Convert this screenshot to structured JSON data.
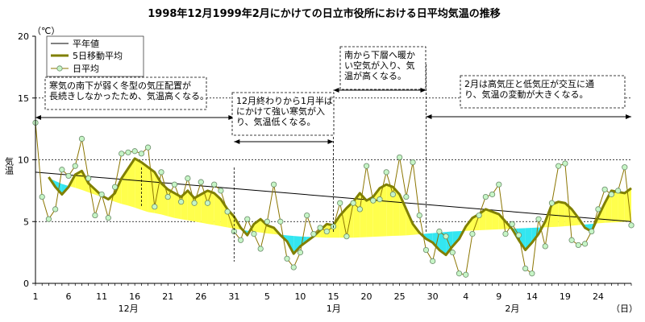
{
  "chart_data": {
    "type": "line",
    "title": "1998年12月1999年2月にかけての日立市役所における日平均気温の推移",
    "unit_label": "（℃）",
    "ylabel": "気温",
    "xlabel_unit": "（日）",
    "ylim": [
      0,
      20
    ],
    "yticks": [
      0,
      5,
      10,
      15,
      20
    ],
    "grid": "horizontal dashed at 5, 10, 15",
    "legend_position": "top-left",
    "legend": [
      "平年値",
      "5日移動平均",
      "日平均"
    ],
    "x_ticks": [
      {
        "day": 1,
        "label": "1"
      },
      {
        "day": 6,
        "label": "6"
      },
      {
        "day": 11,
        "label": "11"
      },
      {
        "day": 16,
        "label": "16"
      },
      {
        "day": 21,
        "label": "21"
      },
      {
        "day": 26,
        "label": "26"
      },
      {
        "day": 31,
        "label": "31"
      },
      {
        "day": 36,
        "label": "5"
      },
      {
        "day": 41,
        "label": "10"
      },
      {
        "day": 46,
        "label": "15"
      },
      {
        "day": 51,
        "label": "20"
      },
      {
        "day": 56,
        "label": "25"
      },
      {
        "day": 61,
        "label": "30"
      },
      {
        "day": 66,
        "label": "4"
      },
      {
        "day": 71,
        "label": "9"
      },
      {
        "day": 76,
        "label": "14"
      },
      {
        "day": 81,
        "label": "19"
      },
      {
        "day": 86,
        "label": "24"
      }
    ],
    "month_labels": [
      {
        "day": 16,
        "label": "12月"
      },
      {
        "day": 47,
        "label": "1月"
      },
      {
        "day": 74,
        "label": "2月"
      }
    ],
    "x_start_label": "1998-12-01",
    "series": [
      {
        "name": "日平均",
        "values": [
          13.0,
          7.0,
          5.2,
          6.0,
          9.2,
          8.7,
          9.5,
          11.7,
          8.5,
          5.5,
          7.2,
          5.3,
          7.8,
          10.5,
          10.6,
          10.7,
          10.5,
          11.0,
          6.2,
          9.0,
          7.0,
          8.0,
          6.6,
          8.5,
          6.5,
          8.2,
          6.5,
          8.0,
          7.5,
          5.8,
          4.2,
          3.5,
          5.2,
          4.0,
          2.8,
          5.0,
          8.0,
          5.0,
          2.0,
          1.3,
          2.5,
          5.5,
          4.0,
          4.5,
          4.2,
          4.6,
          6.5,
          3.8,
          6.5,
          6.0,
          9.5,
          6.7,
          6.8,
          9.0,
          7.2,
          10.2,
          7.0,
          9.8,
          5.5,
          2.7,
          1.8,
          4.2,
          3.8,
          2.5,
          0.8,
          0.7,
          4.0,
          5.5,
          7.0,
          7.2,
          8.0,
          4.0,
          4.8,
          3.9,
          1.2,
          0.8,
          5.2,
          3.0,
          6.5,
          9.5,
          9.7,
          3.5,
          3.1,
          3.2,
          4.2,
          6.0,
          7.6,
          7.2,
          7.5,
          9.4,
          4.7
        ]
      },
      {
        "name": "5日移動平均",
        "values": [
          null,
          null,
          8.6,
          7.8,
          7.2,
          7.8,
          8.8,
          9.1,
          8.1,
          7.6,
          7.1,
          6.8,
          7.3,
          8.5,
          9.3,
          10.1,
          9.8,
          9.4,
          9.0,
          8.1,
          7.6,
          7.3,
          7.0,
          7.5,
          6.9,
          7.2,
          7.5,
          7.3,
          6.8,
          6.0,
          5.4,
          4.5,
          3.9,
          4.8,
          5.2,
          4.7,
          4.5,
          3.9,
          3.4,
          2.4,
          3.0,
          3.4,
          3.8,
          4.3,
          4.8,
          4.7,
          5.5,
          6.1,
          6.6,
          7.3,
          6.7,
          7.0,
          7.7,
          8.0,
          7.8,
          7.2,
          6.0,
          4.8,
          4.1,
          3.6,
          3.3,
          2.7,
          2.3,
          3.0,
          3.6,
          4.6,
          5.3,
          5.6,
          6.0,
          5.8,
          5.6,
          5.0,
          4.4,
          3.5,
          2.7,
          3.3,
          4.0,
          5.0,
          6.4,
          6.6,
          6.5,
          6.0,
          5.3,
          4.5,
          4.2,
          5.4,
          6.5,
          7.5,
          7.4,
          7.3,
          7.7
        ]
      },
      {
        "name": "平年値",
        "values": [
          9.0,
          8.5,
          8.0,
          7.7,
          7.3,
          6.9,
          6.5,
          6.2,
          5.8,
          5.6,
          5.3,
          5.1,
          4.9,
          4.7,
          4.5,
          4.3,
          4.15,
          4.0,
          3.9,
          3.8,
          3.75,
          3.7,
          3.7,
          3.7,
          3.75,
          3.8,
          3.85,
          3.9,
          4.0,
          4.1,
          4.2,
          4.25,
          4.3,
          4.35,
          4.4,
          4.45,
          4.5,
          4.55,
          4.6,
          4.7,
          4.8,
          4.9,
          4.95,
          5.0
        ]
      }
    ],
    "annotations": [
      {
        "id": "a1",
        "lines": [
          "寒気の南下が弱く冬型の気圧配置が",
          "長続きしなかったため、気温高くなる。"
        ],
        "period": [
          1,
          31
        ]
      },
      {
        "id": "a2",
        "lines": [
          "12月終わりから1月半ば",
          "にかけて強い寒気が入",
          "り、気温低くなる。"
        ],
        "period": [
          31,
          46
        ]
      },
      {
        "id": "a3",
        "lines": [
          "南から下層へ暖か",
          "い空気が入り、気",
          "温が高くなる。"
        ],
        "period": [
          46,
          60
        ]
      },
      {
        "id": "a4",
        "lines": [
          "2月は高気圧と低気圧が交互に通",
          "り、気温の変動が大きくなる。"
        ],
        "period": [
          60,
          91
        ]
      }
    ],
    "colors": {
      "normal_line": "#000000",
      "moving_avg": "#808000",
      "daily_line": "#8b7500",
      "marker_fill": "#c6f5c6",
      "marker_stroke": "#6b8b6b",
      "above_fill": "#ffff4d",
      "below_fill": "#33e6f0",
      "grid": "#000000"
    }
  }
}
